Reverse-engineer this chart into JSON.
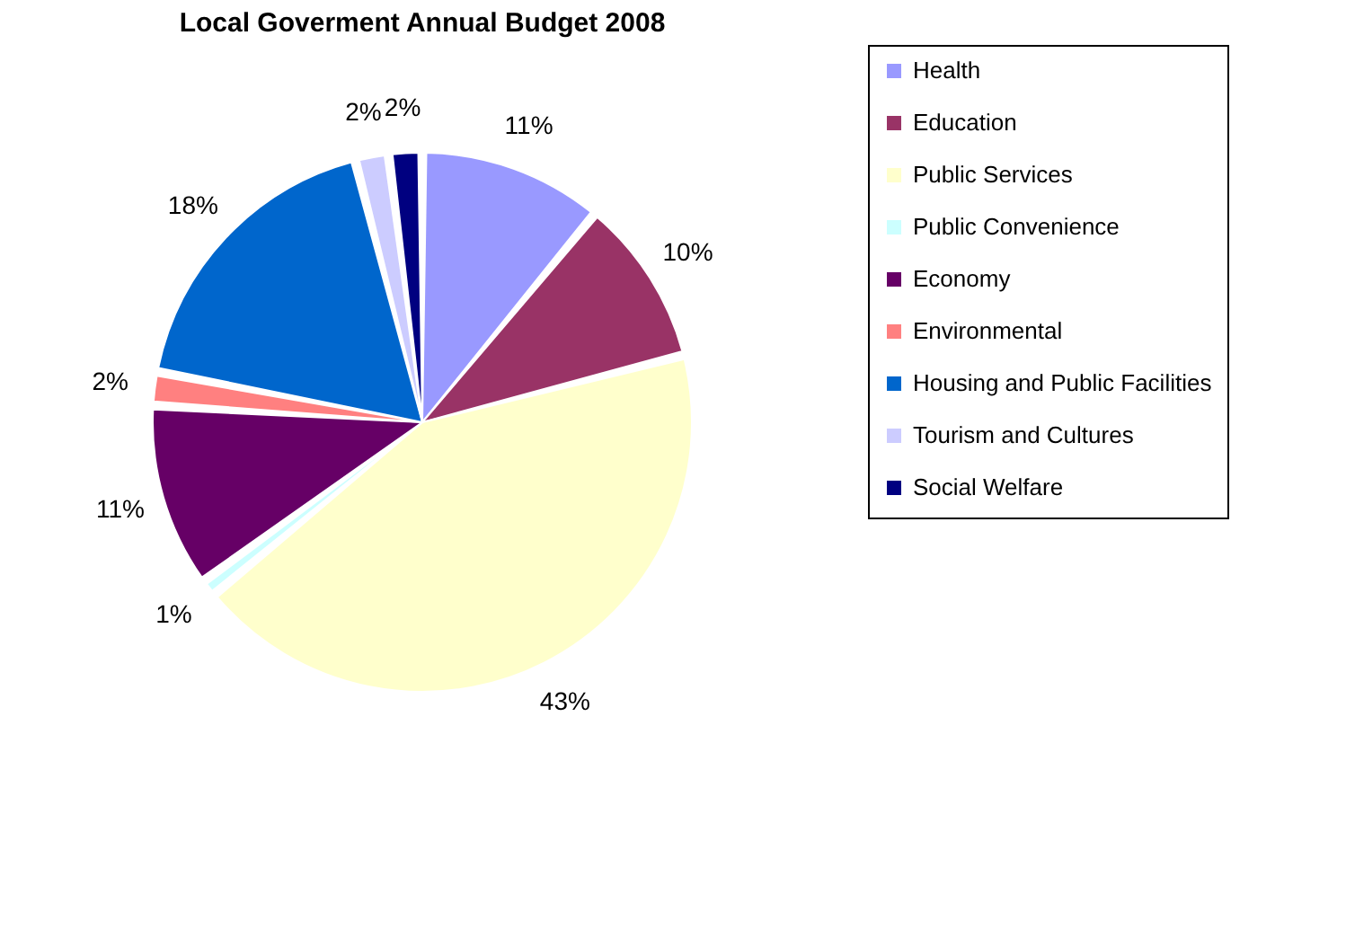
{
  "chart_data": {
    "type": "pie",
    "title": "Local Goverment Annual Budget 2008",
    "categories": [
      "Health",
      "Education",
      "Public Services",
      "Public Convenience",
      "Economy",
      "Environmental",
      "Housing and Public Facilities",
      "Tourism and Cultures",
      "Social Welfare"
    ],
    "values": [
      11,
      10,
      43,
      1,
      11,
      2,
      18,
      2,
      2
    ],
    "value_labels": [
      "11%",
      "10%",
      "43%",
      "1%",
      "11%",
      "2%",
      "18%",
      "2%",
      "2%"
    ],
    "colors": [
      "#9999ff",
      "#993366",
      "#ffffcc",
      "#ccffff",
      "#660066",
      "#ff8080",
      "#0066cc",
      "#ccccff",
      "#000080"
    ],
    "legend": "right"
  }
}
